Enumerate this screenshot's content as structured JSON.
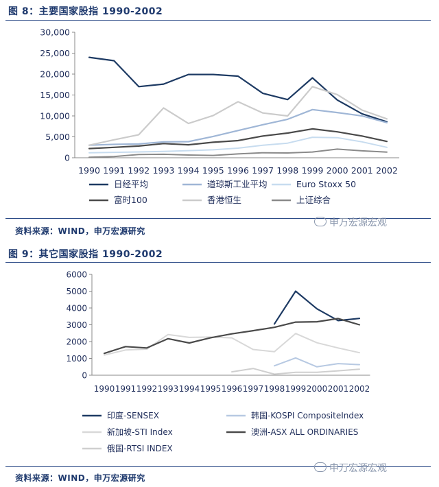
{
  "figure1": {
    "title": "图 8：主要国家股指 1990-2002",
    "source": "资料来源：WIND，申万宏源研究",
    "watermark": "申万宏源宏观"
  },
  "figure2": {
    "title": "图 9：其它国家股指 1990-2002",
    "source": "资料来源：WIND，申万宏源研究",
    "watermark": "申万宏源宏观"
  },
  "chart_data": [
    {
      "type": "line",
      "title": "",
      "xlabel": "",
      "ylabel": "",
      "x": [
        "1990",
        "1991",
        "1992",
        "1993",
        "1994",
        "1995",
        "1996",
        "1997",
        "1998",
        "1999",
        "2000",
        "2001",
        "2002"
      ],
      "ylim": [
        0,
        30000
      ],
      "yticks": [
        0,
        5000,
        10000,
        15000,
        20000,
        25000,
        30000
      ],
      "ytick_labels": [
        "0",
        "5,000",
        "10,000",
        "15,000",
        "20,000",
        "25,000",
        "30,000"
      ],
      "grid": false,
      "legend_position": "bottom",
      "series": [
        {
          "name": "日经平均",
          "color": "#1d3a63",
          "width": 2.2,
          "values": [
            24000,
            23200,
            17000,
            17600,
            19900,
            19900,
            19500,
            15400,
            13900,
            19100,
            13800,
            10500,
            8600
          ]
        },
        {
          "name": "道琼斯工业平均",
          "color": "#9fb6d6",
          "width": 2.2,
          "values": [
            3000,
            3200,
            3300,
            3800,
            3850,
            5100,
            6500,
            7900,
            9200,
            11500,
            10800,
            10000,
            8400
          ]
        },
        {
          "name": "Euro Stoxx 50",
          "color": "#c7dcef",
          "width": 2.0,
          "values": [
            1200,
            1300,
            1400,
            1500,
            1700,
            1900,
            2300,
            3000,
            3500,
            4900,
            4800,
            3800,
            2500
          ]
        },
        {
          "name": "富时100",
          "color": "#4a4a4a",
          "width": 2.2,
          "values": [
            2200,
            2500,
            2800,
            3400,
            3100,
            3700,
            4100,
            5200,
            5900,
            6900,
            6200,
            5200,
            3900
          ]
        },
        {
          "name": "香港恒生",
          "color": "#cbcbcb",
          "width": 2.2,
          "values": [
            3000,
            4300,
            5500,
            11900,
            8200,
            10100,
            13400,
            10700,
            10000,
            17000,
            15100,
            11400,
            9300
          ]
        },
        {
          "name": "上证综合",
          "color": "#8a8a8a",
          "width": 2.0,
          "values": [
            130,
            290,
            780,
            830,
            650,
            560,
            920,
            1190,
            1150,
            1370,
            2070,
            1650,
            1360
          ]
        }
      ]
    },
    {
      "type": "line",
      "title": "",
      "xlabel": "",
      "ylabel": "",
      "x": [
        "1990",
        "1991",
        "1992",
        "1993",
        "1994",
        "1995",
        "1996",
        "1997",
        "1998",
        "1999",
        "2000",
        "2001",
        "2002"
      ],
      "ylim": [
        0,
        6000
      ],
      "yticks": [
        0,
        1000,
        2000,
        3000,
        4000,
        5000,
        6000
      ],
      "ytick_labels": [
        "0",
        "1000",
        "2000",
        "3000",
        "4000",
        "5000",
        "6000"
      ],
      "grid": false,
      "legend_position": "bottom",
      "series": [
        {
          "name": "印度-SENSEX",
          "color": "#1d3a63",
          "width": 2.2,
          "values": [
            null,
            null,
            null,
            null,
            null,
            null,
            null,
            null,
            3050,
            5000,
            3950,
            3250,
            3380
          ]
        },
        {
          "name": "韩国-KOSPI CompositeIndex",
          "color": "#b7c9e2",
          "width": 2.0,
          "values": [
            null,
            null,
            null,
            null,
            null,
            null,
            null,
            null,
            560,
            1030,
            500,
            690,
            630
          ]
        },
        {
          "name": "新加坡-STI Index",
          "color": "#d8d8d8",
          "width": 2.0,
          "values": [
            1200,
            1500,
            1550,
            2420,
            2250,
            2270,
            2220,
            1530,
            1400,
            2480,
            1930,
            1620,
            1340
          ]
        },
        {
          "name": "澳洲-ASX ALL ORDINARIES",
          "color": "#4a4a4a",
          "width": 2.2,
          "values": [
            1300,
            1700,
            1620,
            2170,
            1920,
            2230,
            2460,
            2650,
            2850,
            3160,
            3180,
            3370,
            3000
          ]
        },
        {
          "name": "俄国-RTSI INDEX",
          "color": "#cfcfcf",
          "width": 2.0,
          "values": [
            null,
            null,
            null,
            null,
            null,
            null,
            200,
            400,
            60,
            170,
            170,
            260,
            360
          ]
        }
      ]
    }
  ]
}
